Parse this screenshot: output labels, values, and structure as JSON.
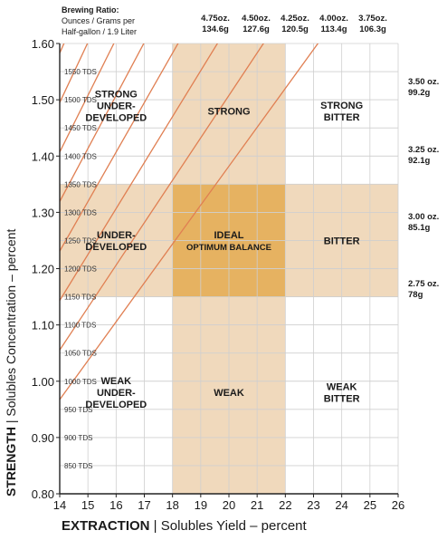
{
  "header": {
    "title": "Brewing Ratio:",
    "line1": "Ounces / Grams per",
    "line2": "Half-gallon / 1.9 Liter"
  },
  "ratio_labels": [
    {
      "oz": "4.75oz.",
      "g": "134.6g"
    },
    {
      "oz": "4.50oz.",
      "g": "127.6g"
    },
    {
      "oz": "4.25oz.",
      "g": "120.5g"
    },
    {
      "oz": "4.00oz.",
      "g": "113.4g"
    },
    {
      "oz": "3.75oz.",
      "g": "106.3g"
    },
    {
      "oz": "3.50 oz.",
      "g": "99.2g"
    },
    {
      "oz": "3.25 oz.",
      "g": "92.1g"
    },
    {
      "oz": "3.00 oz.",
      "g": "85.1g"
    },
    {
      "oz": "2.75 oz.",
      "g": "78g"
    }
  ],
  "axis_titles": {
    "y_bold": "STRENGTH",
    "y_rest": " |  Solubles Concentration – percent",
    "x_bold": "EXTRACTION",
    "x_rest": " |  Solubles Yield – percent"
  },
  "chart_data": {
    "type": "line",
    "xlim": [
      14,
      26
    ],
    "ylim": [
      0.8,
      1.6
    ],
    "x_ticks": [
      "14",
      "15",
      "16",
      "17",
      "18",
      "19",
      "20",
      "21",
      "22",
      "23",
      "24",
      "25",
      "26"
    ],
    "y_ticks": [
      "0.80",
      "0.90",
      "1.00",
      "1.10",
      "1.20",
      "1.30",
      "1.40",
      "1.50",
      "1.60"
    ],
    "tds_labels": [
      "1550 TDS",
      "1500 TDS",
      "1450 TDS",
      "1400 TDS",
      "1350 TDS",
      "1300 TDS",
      "1250 TDS",
      "1200 TDS",
      "1150 TDS",
      "1100 TDS",
      "1050 TDS",
      "1000 TDS",
      "950 TDS",
      "900 TDS",
      "850 TDS"
    ],
    "tds_values": [
      1.55,
      1.5,
      1.45,
      1.4,
      1.35,
      1.3,
      1.25,
      1.2,
      1.15,
      1.1,
      1.05,
      1.0,
      0.95,
      0.9,
      0.85
    ],
    "ideal_extraction": [
      18,
      22
    ],
    "ideal_strength": [
      1.15,
      1.35
    ],
    "grid": true,
    "ratio_slopes": [
      {
        "label": "4.75oz. 134.6g",
        "slope": 0.11935
      },
      {
        "label": "4.50oz. 127.6g",
        "slope": 0.11307
      },
      {
        "label": "4.25oz. 120.5g",
        "slope": 0.10679
      },
      {
        "label": "4.00oz. 113.4g",
        "slope": 0.10051
      },
      {
        "label": "3.75oz. 106.3g",
        "slope": 0.09423
      },
      {
        "label": "3.50 oz. 99.2g",
        "slope": 0.08794
      },
      {
        "label": "3.25 oz. 92.1g",
        "slope": 0.08167
      },
      {
        "label": "3.00 oz. 85.1g",
        "slope": 0.07539
      },
      {
        "label": "2.75 oz. 78g",
        "slope": 0.0691
      }
    ],
    "regions": [
      {
        "line1": "STRONG",
        "line2": "UNDER-",
        "line3": "DEVELOPED",
        "x": 16,
        "y": 1.49
      },
      {
        "line1": "STRONG",
        "line2": "",
        "line3": "",
        "x": 20,
        "y": 1.48
      },
      {
        "line1": "STRONG",
        "line2": "BITTER",
        "line3": "",
        "x": 24,
        "y": 1.48
      },
      {
        "line1": "UNDER-",
        "line2": "DEVELOPED",
        "line3": "",
        "x": 16,
        "y": 1.25
      },
      {
        "line1": "IDEAL",
        "line2": "OPTIMUM BALANCE",
        "line3": "",
        "x": 20,
        "y": 1.25
      },
      {
        "line1": "BITTER",
        "line2": "",
        "line3": "",
        "x": 24,
        "y": 1.25
      },
      {
        "line1": "WEAK",
        "line2": "UNDER-",
        "line3": "DEVELOPED",
        "x": 16,
        "y": 0.98
      },
      {
        "line1": "WEAK",
        "line2": "",
        "line3": "",
        "x": 20,
        "y": 0.98
      },
      {
        "line1": "WEAK",
        "line2": "BITTER",
        "line3": "",
        "x": 24,
        "y": 0.98
      }
    ],
    "colors": {
      "band": "#f0d9bc",
      "ideal": "#e6b261",
      "line": "#e07f52",
      "grid": "#cfcfcf",
      "axis": "#222222"
    }
  }
}
